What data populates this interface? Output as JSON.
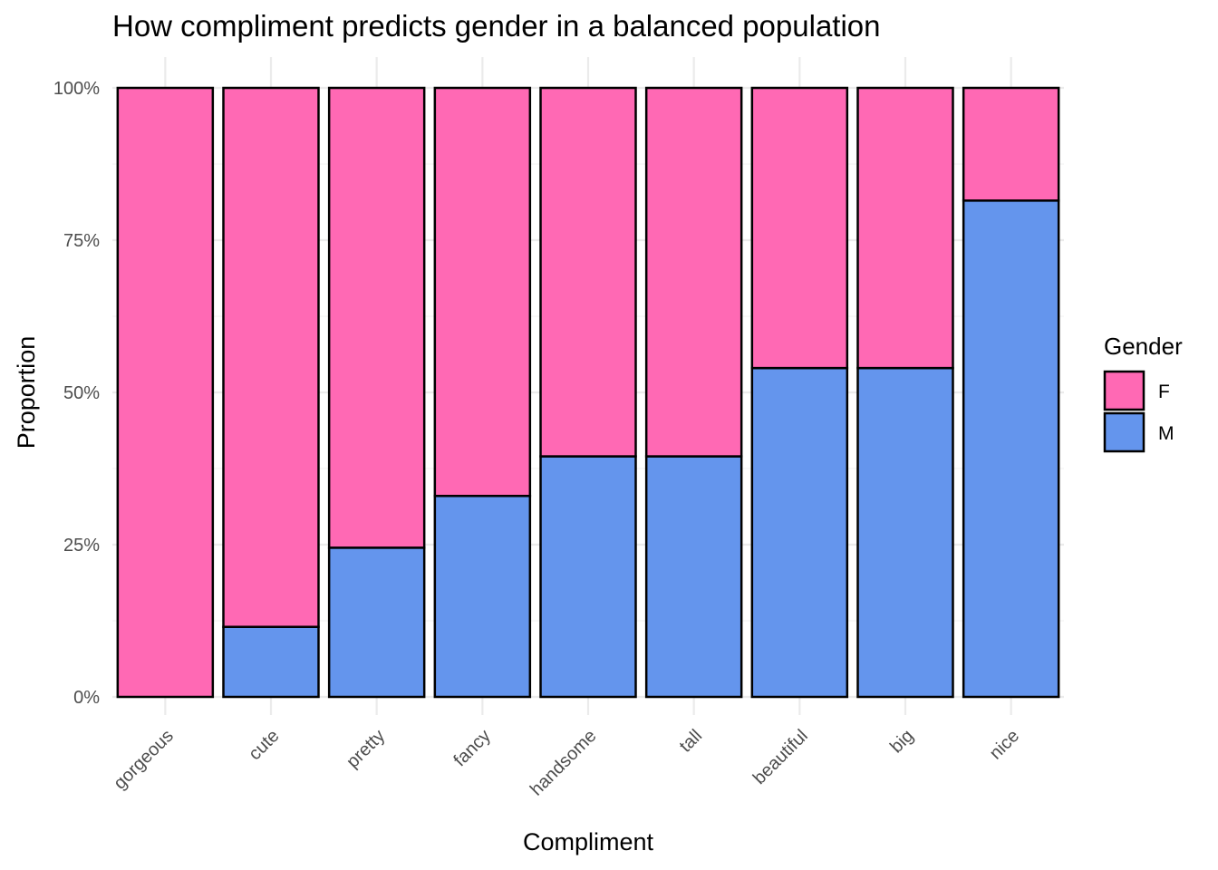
{
  "chart_data": {
    "type": "bar",
    "stacked": true,
    "title": "How compliment predicts gender in a balanced population",
    "xlabel": "Compliment",
    "ylabel": "Proportion",
    "categories": [
      "gorgeous",
      "cute",
      "pretty",
      "fancy",
      "handsome",
      "tall",
      "beautiful",
      "big",
      "nice"
    ],
    "series": [
      {
        "name": "M",
        "color": "#6495ED",
        "values": [
          0.0,
          0.115,
          0.245,
          0.33,
          0.395,
          0.395,
          0.54,
          0.54,
          0.815
        ]
      },
      {
        "name": "F",
        "color": "#FF69B4",
        "values": [
          1.0,
          0.885,
          0.755,
          0.67,
          0.605,
          0.605,
          0.46,
          0.46,
          0.185
        ]
      }
    ],
    "ylim": [
      0,
      1
    ],
    "yticks": [
      0,
      0.25,
      0.5,
      0.75,
      1.0
    ],
    "ytick_labels": [
      "0%",
      "25%",
      "50%",
      "75%",
      "100%"
    ],
    "grid": true,
    "legend": {
      "title": "Gender",
      "position": "right",
      "entries": [
        {
          "label": "F",
          "color": "#FF69B4"
        },
        {
          "label": "M",
          "color": "#6495ED"
        }
      ]
    }
  }
}
